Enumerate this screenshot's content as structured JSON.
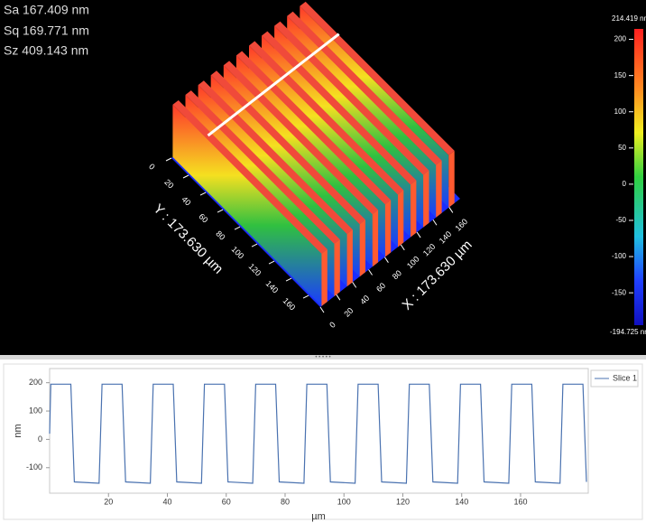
{
  "stats": [
    "Sa 167.409 nm",
    "Sq 169.771 nm",
    "Sz 409.143 nm"
  ],
  "view3d": {
    "x_label": "X : 173.630 µm",
    "y_label": "Y : 173.630 µm",
    "xlim": [
      0,
      173.63
    ],
    "ylim": [
      0,
      173.63
    ],
    "xticks": [
      0,
      20,
      40,
      60,
      80,
      100,
      120,
      140,
      160
    ],
    "yticks": [
      0,
      20,
      40,
      60,
      80,
      100,
      120,
      140,
      160
    ]
  },
  "colorbar": {
    "max_label": "214.419 nm",
    "min_label": "-194.725 nm",
    "lim": [
      -194.725,
      214.419
    ],
    "ticks": [
      200,
      150,
      100,
      50,
      0,
      -50,
      -100,
      -150
    ]
  },
  "chart_data": {
    "type": "line",
    "xlabel": "µm",
    "ylabel": "nm",
    "legend": "top-right",
    "x": [
      0,
      0.4,
      7.2,
      8.4,
      16.8,
      17.8,
      24.6,
      25.8,
      34.2,
      35.2,
      42.0,
      43.2,
      51.6,
      52.6,
      59.4,
      60.6,
      69.0,
      70.0,
      76.8,
      78.0,
      86.4,
      87.4,
      94.2,
      95.4,
      103.8,
      104.8,
      111.6,
      112.8,
      121.2,
      122.2,
      129.0,
      130.2,
      138.6,
      139.6,
      146.4,
      147.6,
      156.0,
      157.0,
      163.8,
      165.0,
      173.4,
      174.4,
      181.2,
      182.4
    ],
    "series": [
      {
        "name": "Slice 1",
        "color": "#4a72b0",
        "values": [
          20,
          195,
          195,
          -150,
          -155,
          195,
          195,
          -150,
          -155,
          195,
          195,
          -150,
          -155,
          195,
          195,
          -150,
          -155,
          195,
          195,
          -150,
          -155,
          195,
          195,
          -150,
          -155,
          195,
          195,
          -150,
          -155,
          195,
          195,
          -150,
          -155,
          195,
          195,
          -150,
          -155,
          195,
          195,
          -150,
          -155,
          195,
          195,
          -150
        ]
      }
    ],
    "xlim": [
      0,
      183
    ],
    "ylim": [
      -190,
      250
    ],
    "xticks": [
      20,
      40,
      60,
      80,
      100,
      120,
      140,
      160
    ],
    "yticks": [
      200,
      100,
      0,
      -100
    ]
  }
}
